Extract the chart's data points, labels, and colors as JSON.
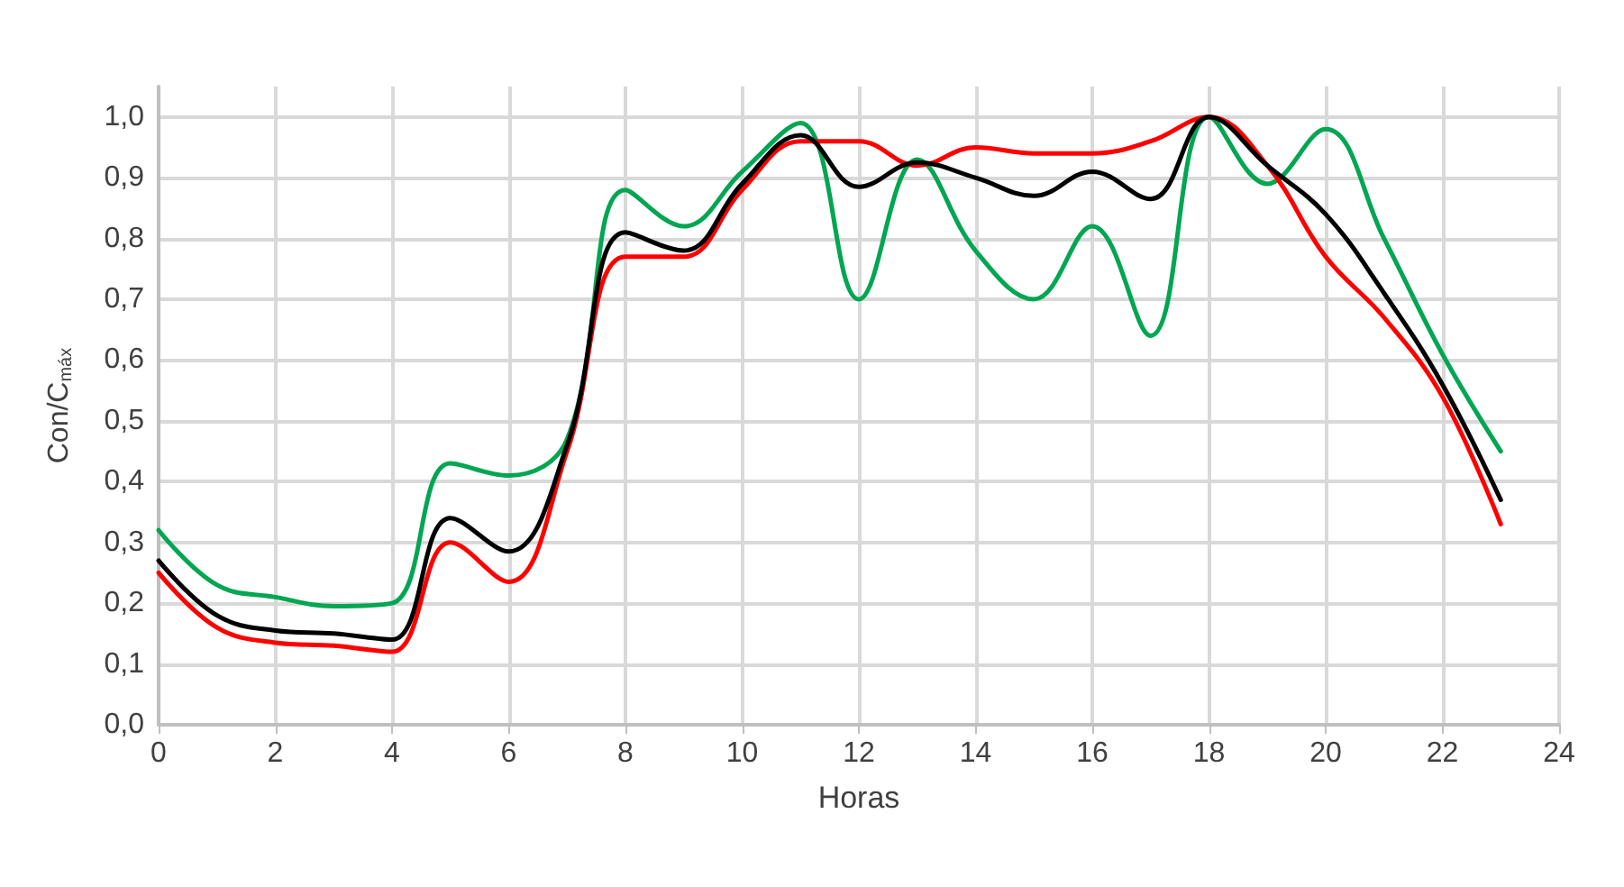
{
  "chart_data": {
    "type": "line",
    "xlabel": "Horas",
    "ylabel": "Con/C$_{máx}$",
    "x": [
      0,
      1,
      2,
      3,
      4,
      5,
      6,
      7,
      8,
      9,
      10,
      11,
      12,
      13,
      14,
      15,
      16,
      17,
      18,
      19,
      20,
      21,
      22,
      23
    ],
    "series": [
      {
        "color": "#00a651",
        "values": [
          0.32,
          0.23,
          0.21,
          0.195,
          0.2,
          0.43,
          0.41,
          0.47,
          0.88,
          0.82,
          0.91,
          0.99,
          0.7,
          0.93,
          0.78,
          0.7,
          0.82,
          0.64,
          1.0,
          0.89,
          0.98,
          0.8,
          0.61,
          0.45
        ]
      },
      {
        "color": "#ff0000",
        "values": [
          0.25,
          0.16,
          0.135,
          0.13,
          0.12,
          0.3,
          0.235,
          0.45,
          0.77,
          0.77,
          0.88,
          0.96,
          0.96,
          0.92,
          0.95,
          0.94,
          0.94,
          0.96,
          1.0,
          0.92,
          0.77,
          0.67,
          0.54,
          0.33
        ]
      },
      {
        "color": "#000000",
        "values": [
          0.27,
          0.18,
          0.155,
          0.15,
          0.14,
          0.34,
          0.285,
          0.46,
          0.81,
          0.78,
          0.89,
          0.97,
          0.885,
          0.925,
          0.9,
          0.87,
          0.91,
          0.865,
          1.0,
          0.92,
          0.84,
          0.71,
          0.56,
          0.37
        ]
      }
    ],
    "xlim": [
      0,
      24
    ],
    "xticks": [
      0,
      2,
      4,
      6,
      8,
      10,
      12,
      14,
      16,
      18,
      20,
      22,
      24
    ],
    "ylim": [
      0,
      1.05
    ],
    "yticks": [
      {
        "value": 0,
        "label": "0,0"
      },
      {
        "value": 0.1,
        "label": "0,1"
      },
      {
        "value": 0.2,
        "label": "0,2"
      },
      {
        "value": 0.3,
        "label": "0,3"
      },
      {
        "value": 0.4,
        "label": "0,4"
      },
      {
        "value": 0.5,
        "label": "0,5"
      },
      {
        "value": 0.6,
        "label": "0,6"
      },
      {
        "value": 0.7,
        "label": "0,7"
      },
      {
        "value": 0.8,
        "label": "0,8"
      },
      {
        "value": 0.9,
        "label": "0,9"
      },
      {
        "value": 1.0,
        "label": "1,0"
      }
    ],
    "grid": true,
    "marker": "none",
    "line_style": "solid"
  }
}
